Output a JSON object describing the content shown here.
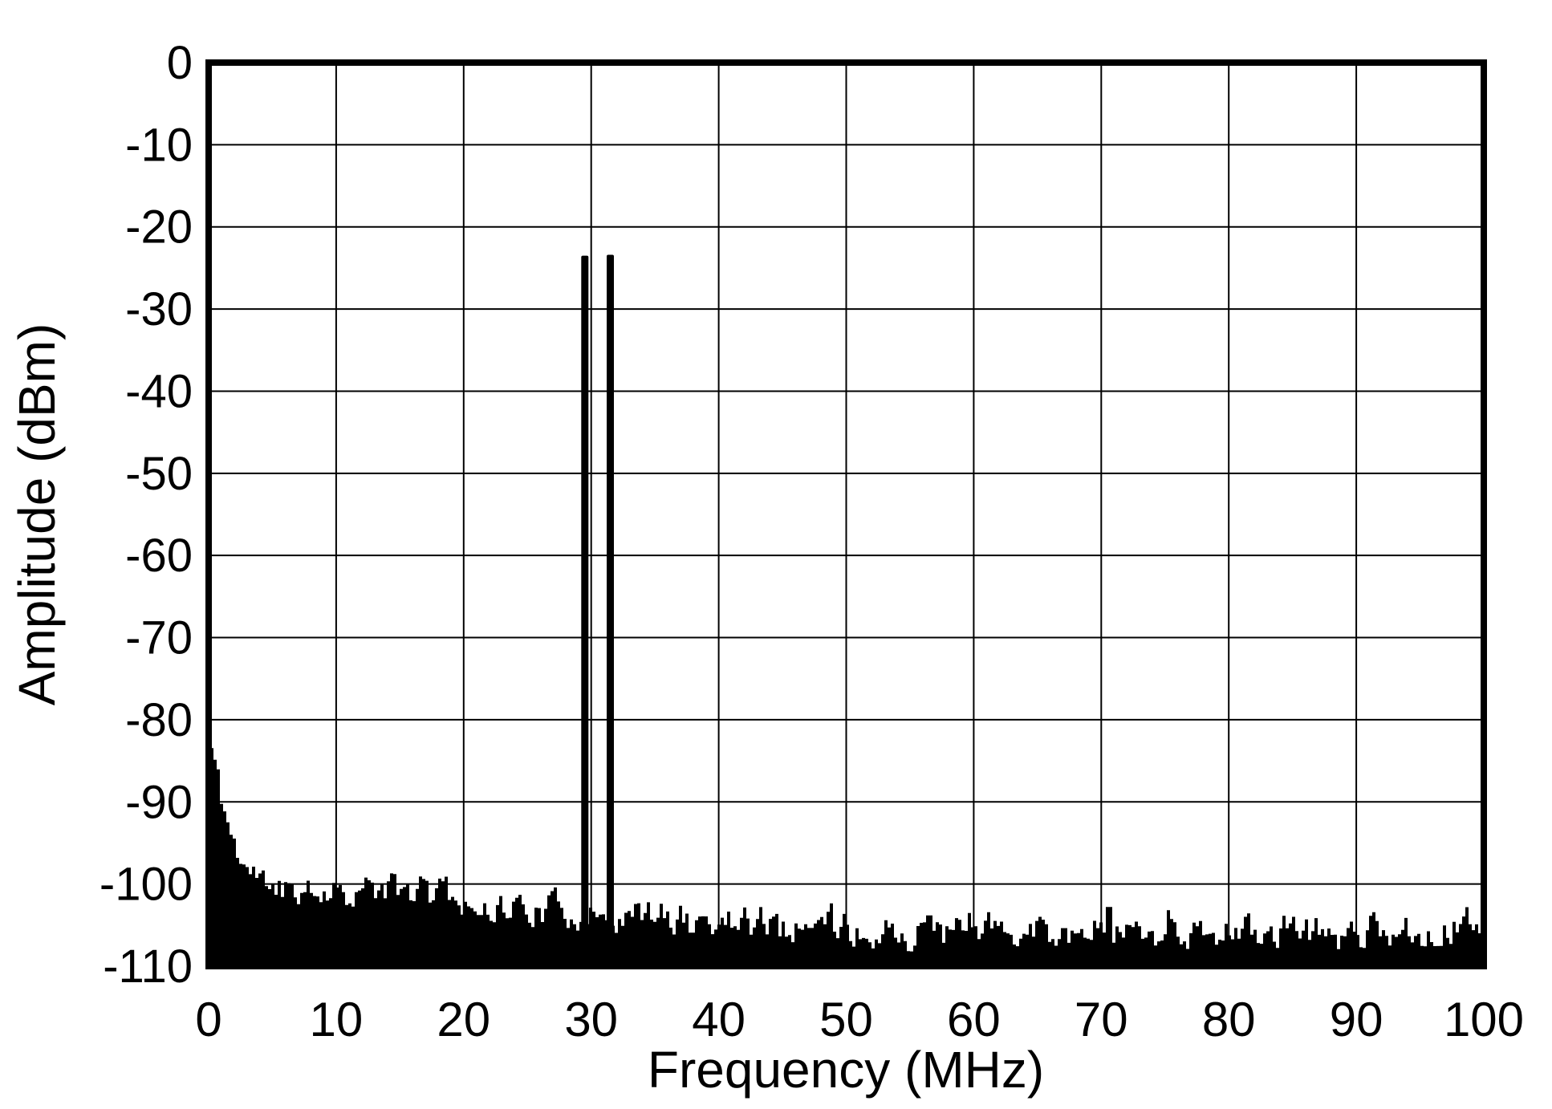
{
  "chart_data": {
    "type": "line",
    "subtype": "fft-power-spectrum",
    "title": "",
    "xlabel": "Frequency (MHz)",
    "ylabel": "Amplitude (dBm)",
    "xlim": [
      0,
      100
    ],
    "ylim": [
      -110,
      0
    ],
    "x_ticks": [
      0,
      10,
      20,
      30,
      40,
      50,
      60,
      70,
      80,
      90,
      100
    ],
    "y_ticks": [
      0,
      -10,
      -20,
      -30,
      -40,
      -50,
      -60,
      -70,
      -80,
      -90,
      -100,
      -110
    ],
    "grid": true,
    "legend": false,
    "series_color": "#000000",
    "background_color": "#ffffff",
    "tones": [
      {
        "frequency_mhz": 29.5,
        "amplitude_dbm": -23.5
      },
      {
        "frequency_mhz": 31.5,
        "amplitude_dbm": -23.4
      }
    ],
    "spurs": [
      {
        "frequency_mhz": 70.6,
        "amplitude_dbm": -102.8
      }
    ],
    "noise_floor_envelope_dbm": [
      [
        0.2,
        -83.5
      ],
      [
        0.5,
        -86.5
      ],
      [
        1.0,
        -90.5
      ],
      [
        1.5,
        -93.0
      ],
      [
        2.0,
        -95.5
      ],
      [
        2.5,
        -97.0
      ],
      [
        3.0,
        -98.5
      ],
      [
        4.0,
        -99.5
      ],
      [
        6.0,
        -100.2
      ],
      [
        10.0,
        -100.4
      ],
      [
        15.0,
        -101.0
      ],
      [
        20.0,
        -102.0
      ],
      [
        25.0,
        -103.0
      ],
      [
        30.0,
        -103.6
      ],
      [
        35.0,
        -104.0
      ],
      [
        40.0,
        -104.4
      ],
      [
        45.0,
        -104.8
      ],
      [
        50.0,
        -105.4
      ],
      [
        55.0,
        -106.0
      ],
      [
        60.0,
        -105.8
      ],
      [
        65.0,
        -105.6
      ],
      [
        70.0,
        -105.4
      ],
      [
        75.0,
        -105.8
      ],
      [
        80.0,
        -105.8
      ],
      [
        85.0,
        -106.0
      ],
      [
        90.0,
        -105.6
      ],
      [
        95.0,
        -105.4
      ],
      [
        100.0,
        -105.2
      ]
    ],
    "noise_floor_min_dbm": -110,
    "noise_variation_db": 1.5,
    "random_seed": 11
  }
}
